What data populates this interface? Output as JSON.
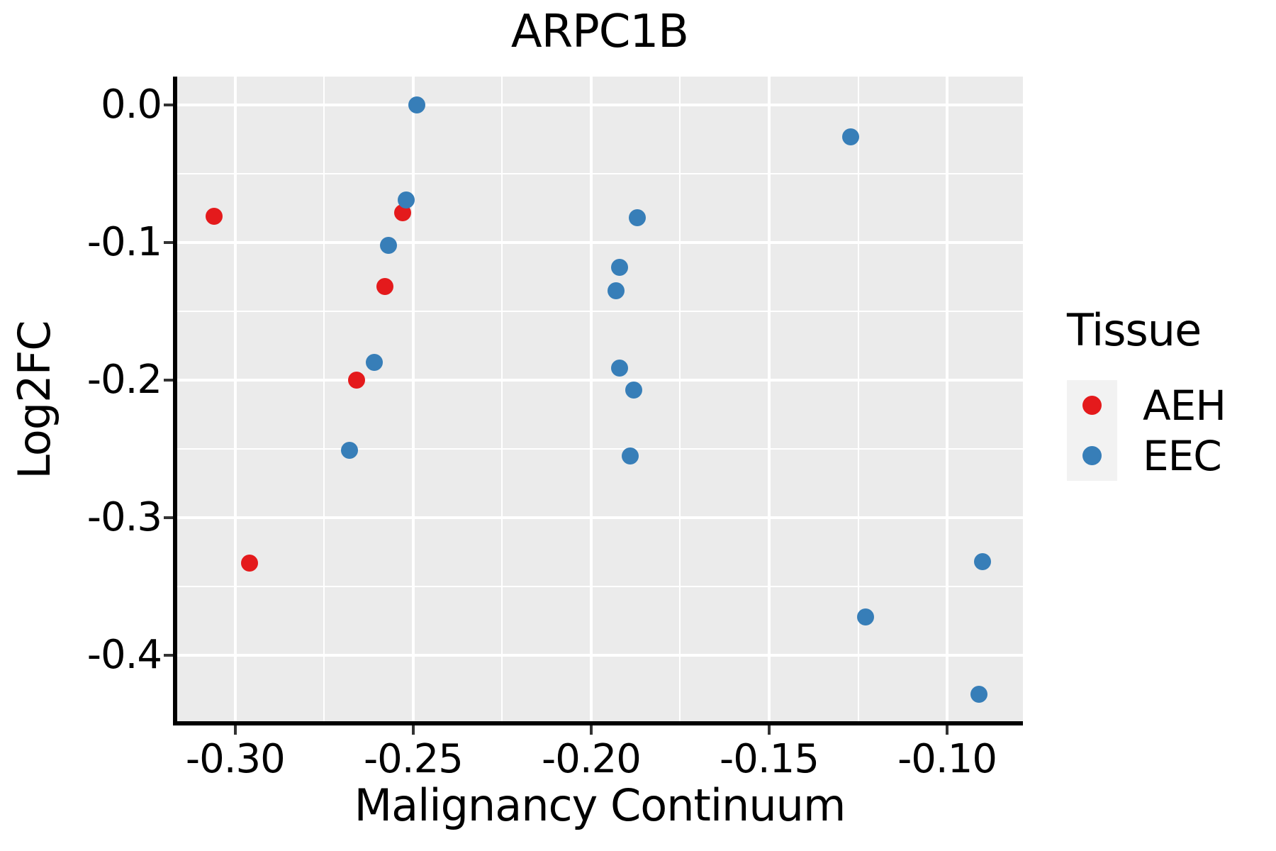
{
  "figure": {
    "title": "ARPC1B",
    "x_axis_label": "Malignancy Continuum",
    "y_axis_label": "Log2FC"
  },
  "chart_data": {
    "type": "scatter",
    "title": "ARPC1B",
    "xlabel": "Malignancy Continuum",
    "ylabel": "Log2FC",
    "xlim": [
      -0.3165,
      -0.0787
    ],
    "ylim": [
      -0.4493,
      0.0208
    ],
    "grid": true,
    "panel_background": "#ebebeb",
    "gridline_color": "#ffffff",
    "x_major_ticks": [
      -0.3,
      -0.25,
      -0.2,
      -0.15,
      -0.1
    ],
    "x_tick_labels": [
      "-0.30",
      "-0.25",
      "-0.20",
      "-0.15",
      "-0.10"
    ],
    "x_minor_gridlines": [
      -0.275,
      -0.225,
      -0.175,
      -0.125
    ],
    "y_major_ticks": [
      0.0,
      -0.1,
      -0.2,
      -0.3,
      -0.4
    ],
    "y_tick_labels": [
      "0.0",
      "-0.1",
      "-0.2",
      "-0.3",
      "-0.4"
    ],
    "y_minor_gridlines": [
      -0.05,
      -0.15,
      -0.25,
      -0.35
    ],
    "legend": {
      "title": "Tissue",
      "position": "right",
      "entries": [
        {
          "label": "AEH",
          "color": "#e41a1c"
        },
        {
          "label": "EEC",
          "color": "#377eb8"
        }
      ]
    },
    "series": [
      {
        "name": "AEH",
        "color": "#e41a1c",
        "points": [
          [
            -0.306,
            -0.081
          ],
          [
            -0.253,
            -0.078
          ],
          [
            -0.258,
            -0.132
          ],
          [
            -0.266,
            -0.2
          ],
          [
            -0.296,
            -0.333
          ]
        ]
      },
      {
        "name": "EEC",
        "color": "#377eb8",
        "points": [
          [
            -0.249,
            0.0
          ],
          [
            -0.252,
            -0.069
          ],
          [
            -0.257,
            -0.102
          ],
          [
            -0.261,
            -0.187
          ],
          [
            -0.268,
            -0.251
          ],
          [
            -0.187,
            -0.082
          ],
          [
            -0.192,
            -0.118
          ],
          [
            -0.193,
            -0.135
          ],
          [
            -0.192,
            -0.191
          ],
          [
            -0.188,
            -0.207
          ],
          [
            -0.189,
            -0.255
          ],
          [
            -0.127,
            -0.023
          ],
          [
            -0.123,
            -0.372
          ],
          [
            -0.09,
            -0.332
          ],
          [
            -0.091,
            -0.428
          ]
        ]
      }
    ]
  }
}
